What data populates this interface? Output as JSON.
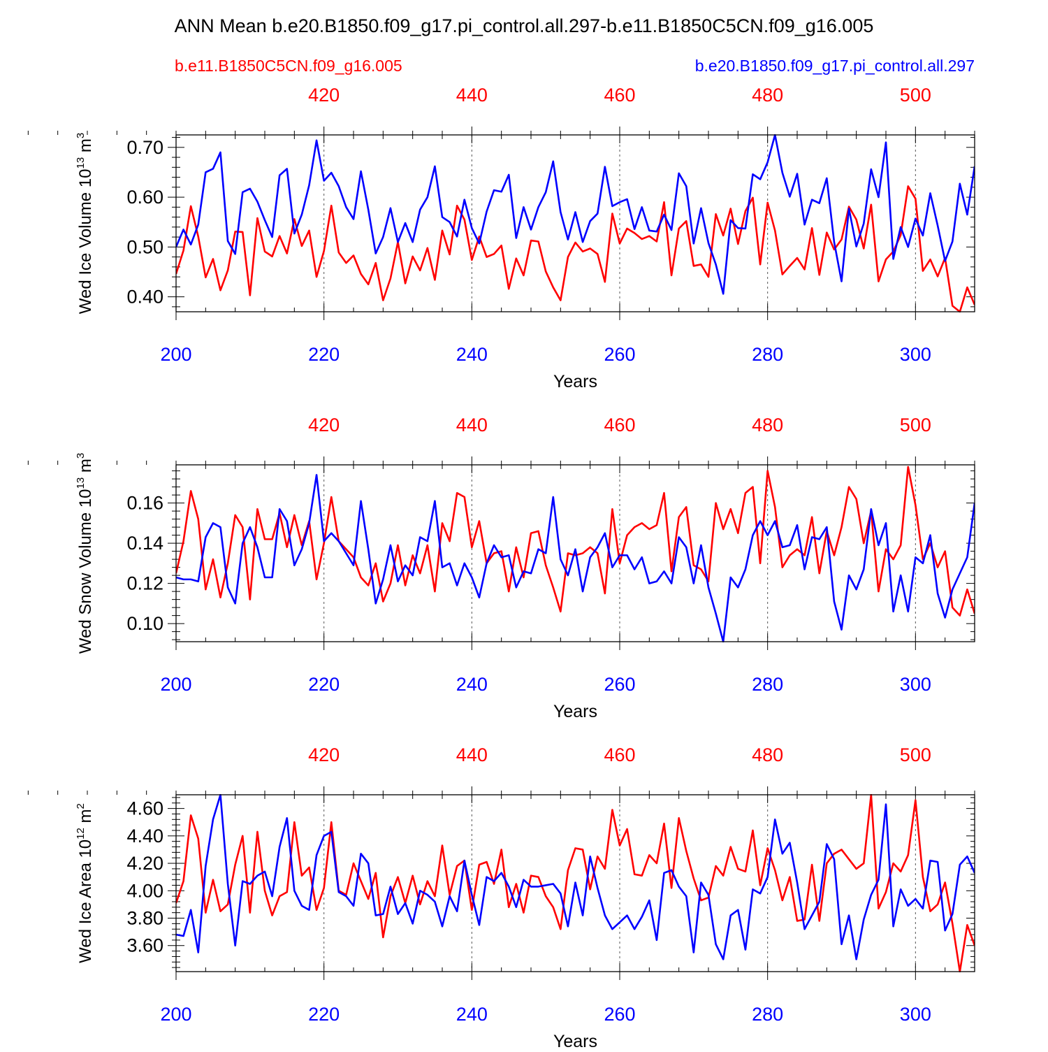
{
  "title": "ANN Mean b.e20.B1850.f09_g17.pi_control.all.297-b.e11.B1850C5CN.f09_g16.005",
  "legend": {
    "left_label": "b.e11.B1850C5CN.f09_g16.005",
    "right_label": "b.e20.B1850.f09_g17.pi_control.all.297",
    "left_color": "#ff0000",
    "right_color": "#0000ff"
  },
  "chart_data": [
    {
      "type": "line",
      "ylabel": "Wed Ice Volume 10",
      "ylabel_exp": "13",
      "ylabel_unit": " m",
      "ylabel_unit_exp": "3",
      "xlabel": "Years",
      "ylim": [
        0.37,
        0.725
      ],
      "ytick_values": [
        0.4,
        0.5,
        0.6,
        0.7
      ],
      "ytick_labels": [
        "0.40",
        "0.50",
        "0.60",
        "0.70"
      ],
      "xlim": [
        200,
        308
      ],
      "xtick_values": [
        200,
        220,
        240,
        260,
        280,
        300
      ],
      "xtick_labels": [
        "200",
        "220",
        "240",
        "260",
        "280",
        "300"
      ],
      "top_xtick_values": [
        420,
        440,
        460,
        480,
        500
      ],
      "top_xtick_labels": [
        "420",
        "440",
        "460",
        "480",
        "500"
      ],
      "top_x_offset": 200,
      "grid_x": true,
      "series": [
        {
          "name": "b.e20.B1850.f09_g17.pi_control.all.297",
          "color": "#0000ff",
          "x_start": 200,
          "values": [
            0.5,
            0.535,
            0.505,
            0.545,
            0.65,
            0.657,
            0.69,
            0.512,
            0.486,
            0.61,
            0.617,
            0.591,
            0.554,
            0.52,
            0.644,
            0.657,
            0.527,
            0.565,
            0.624,
            0.714,
            0.633,
            0.649,
            0.622,
            0.58,
            0.556,
            0.652,
            0.575,
            0.487,
            0.52,
            0.578,
            0.51,
            0.548,
            0.51,
            0.575,
            0.6,
            0.662,
            0.56,
            0.55,
            0.521,
            0.595,
            0.538,
            0.507,
            0.571,
            0.614,
            0.611,
            0.645,
            0.518,
            0.58,
            0.535,
            0.58,
            0.61,
            0.672,
            0.57,
            0.515,
            0.57,
            0.51,
            0.552,
            0.567,
            0.661,
            0.582,
            0.59,
            0.596,
            0.536,
            0.58,
            0.533,
            0.531,
            0.565,
            0.534,
            0.648,
            0.622,
            0.507,
            0.578,
            0.508,
            0.465,
            0.406,
            0.554,
            0.538,
            0.537,
            0.646,
            0.636,
            0.67,
            0.725,
            0.649,
            0.601,
            0.647,
            0.545,
            0.595,
            0.588,
            0.638,
            0.51,
            0.431,
            0.577,
            0.501,
            0.547,
            0.656,
            0.6,
            0.71,
            0.476,
            0.54,
            0.5,
            0.557,
            0.523,
            0.608,
            0.543,
            0.472,
            0.511,
            0.627,
            0.565,
            0.662
          ]
        },
        {
          "name": "b.e11.B1850C5CN.f09_g16.005",
          "color": "#ff0000",
          "x_start": 200,
          "values": [
            0.446,
            0.493,
            0.582,
            0.521,
            0.439,
            0.476,
            0.413,
            0.453,
            0.531,
            0.53,
            0.403,
            0.558,
            0.491,
            0.481,
            0.522,
            0.487,
            0.556,
            0.502,
            0.533,
            0.44,
            0.492,
            0.583,
            0.489,
            0.468,
            0.483,
            0.446,
            0.425,
            0.468,
            0.393,
            0.437,
            0.51,
            0.427,
            0.481,
            0.453,
            0.498,
            0.434,
            0.533,
            0.485,
            0.583,
            0.555,
            0.474,
            0.521,
            0.48,
            0.486,
            0.503,
            0.416,
            0.477,
            0.443,
            0.513,
            0.511,
            0.451,
            0.419,
            0.393,
            0.48,
            0.509,
            0.491,
            0.497,
            0.486,
            0.43,
            0.567,
            0.507,
            0.537,
            0.528,
            0.516,
            0.522,
            0.511,
            0.59,
            0.443,
            0.537,
            0.552,
            0.462,
            0.465,
            0.44,
            0.566,
            0.523,
            0.577,
            0.506,
            0.572,
            0.599,
            0.465,
            0.589,
            0.533,
            0.445,
            0.462,
            0.478,
            0.455,
            0.538,
            0.444,
            0.529,
            0.495,
            0.515,
            0.581,
            0.555,
            0.497,
            0.585,
            0.431,
            0.475,
            0.491,
            0.524,
            0.622,
            0.597,
            0.452,
            0.475,
            0.441,
            0.478,
            0.382,
            0.37,
            0.419,
            0.384
          ]
        }
      ]
    },
    {
      "type": "line",
      "ylabel": "Wed Snow Volume 10",
      "ylabel_exp": "13",
      "ylabel_unit": " m",
      "ylabel_unit_exp": "3",
      "xlabel": "Years",
      "ylim": [
        0.091,
        0.179
      ],
      "ytick_values": [
        0.1,
        0.12,
        0.14,
        0.16
      ],
      "ytick_labels": [
        "0.10",
        "0.12",
        "0.14",
        "0.16"
      ],
      "xlim": [
        200,
        308
      ],
      "xtick_values": [
        200,
        220,
        240,
        260,
        280,
        300
      ],
      "xtick_labels": [
        "200",
        "220",
        "240",
        "260",
        "280",
        "300"
      ],
      "top_xtick_values": [
        420,
        440,
        460,
        480,
        500
      ],
      "top_xtick_labels": [
        "420",
        "440",
        "460",
        "480",
        "500"
      ],
      "top_x_offset": 200,
      "grid_x": true,
      "series": [
        {
          "name": "b.e20.B1850.f09_g17.pi_control.all.297",
          "color": "#0000ff",
          "x_start": 200,
          "values": [
            0.123,
            0.122,
            0.122,
            0.121,
            0.143,
            0.15,
            0.148,
            0.118,
            0.11,
            0.14,
            0.148,
            0.138,
            0.123,
            0.123,
            0.157,
            0.151,
            0.129,
            0.137,
            0.15,
            0.174,
            0.141,
            0.145,
            0.141,
            0.135,
            0.129,
            0.161,
            0.137,
            0.11,
            0.122,
            0.139,
            0.121,
            0.129,
            0.124,
            0.143,
            0.141,
            0.161,
            0.128,
            0.13,
            0.119,
            0.13,
            0.123,
            0.113,
            0.13,
            0.139,
            0.133,
            0.134,
            0.118,
            0.126,
            0.125,
            0.137,
            0.135,
            0.163,
            0.132,
            0.124,
            0.137,
            0.116,
            0.133,
            0.138,
            0.145,
            0.128,
            0.134,
            0.134,
            0.127,
            0.133,
            0.12,
            0.121,
            0.126,
            0.12,
            0.143,
            0.138,
            0.12,
            0.139,
            0.118,
            0.105,
            0.091,
            0.123,
            0.118,
            0.127,
            0.144,
            0.151,
            0.144,
            0.151,
            0.138,
            0.139,
            0.149,
            0.127,
            0.143,
            0.142,
            0.148,
            0.111,
            0.097,
            0.124,
            0.117,
            0.127,
            0.157,
            0.139,
            0.15,
            0.106,
            0.124,
            0.106,
            0.133,
            0.13,
            0.144,
            0.115,
            0.103,
            0.117,
            0.125,
            0.133,
            0.16
          ]
        },
        {
          "name": "b.e11.B1850C5CN.f09_g16.005",
          "color": "#ff0000",
          "x_start": 200,
          "values": [
            0.125,
            0.141,
            0.166,
            0.152,
            0.117,
            0.132,
            0.113,
            0.13,
            0.154,
            0.148,
            0.112,
            0.157,
            0.142,
            0.142,
            0.155,
            0.138,
            0.154,
            0.139,
            0.151,
            0.122,
            0.14,
            0.163,
            0.141,
            0.137,
            0.133,
            0.123,
            0.119,
            0.13,
            0.111,
            0.12,
            0.139,
            0.119,
            0.134,
            0.125,
            0.139,
            0.116,
            0.15,
            0.141,
            0.165,
            0.163,
            0.138,
            0.151,
            0.13,
            0.135,
            0.136,
            0.116,
            0.138,
            0.123,
            0.145,
            0.146,
            0.129,
            0.118,
            0.106,
            0.135,
            0.134,
            0.135,
            0.138,
            0.135,
            0.115,
            0.157,
            0.13,
            0.144,
            0.148,
            0.15,
            0.147,
            0.149,
            0.165,
            0.126,
            0.153,
            0.158,
            0.129,
            0.127,
            0.121,
            0.16,
            0.147,
            0.157,
            0.145,
            0.165,
            0.168,
            0.13,
            0.176,
            0.158,
            0.128,
            0.134,
            0.137,
            0.134,
            0.153,
            0.125,
            0.146,
            0.134,
            0.148,
            0.168,
            0.162,
            0.14,
            0.156,
            0.116,
            0.137,
            0.132,
            0.139,
            0.178,
            0.159,
            0.132,
            0.14,
            0.128,
            0.136,
            0.108,
            0.104,
            0.117,
            0.105
          ]
        }
      ]
    },
    {
      "type": "line",
      "ylabel": "Wed Ice Area 10",
      "ylabel_exp": "12",
      "ylabel_unit": " m",
      "ylabel_unit_exp": "2",
      "xlabel": "Years",
      "ylim": [
        3.41,
        4.7
      ],
      "ytick_values": [
        3.6,
        3.8,
        4.0,
        4.2,
        4.4,
        4.6
      ],
      "ytick_labels": [
        "3.60",
        "3.80",
        "4.00",
        "4.20",
        "4.40",
        "4.60"
      ],
      "xlim": [
        200,
        308
      ],
      "xtick_values": [
        200,
        220,
        240,
        260,
        280,
        300
      ],
      "xtick_labels": [
        "200",
        "220",
        "240",
        "260",
        "280",
        "300"
      ],
      "top_xtick_values": [
        420,
        440,
        460,
        480,
        500
      ],
      "top_xtick_labels": [
        "420",
        "440",
        "460",
        "480",
        "500"
      ],
      "top_x_offset": 200,
      "grid_x": true,
      "series": [
        {
          "name": "b.e20.B1850.f09_g17.pi_control.all.297",
          "color": "#0000ff",
          "x_start": 200,
          "values": [
            3.68,
            3.67,
            3.86,
            3.55,
            4.18,
            4.52,
            4.7,
            4.05,
            3.6,
            4.07,
            4.05,
            4.11,
            4.14,
            3.96,
            4.32,
            4.53,
            4.0,
            3.89,
            3.86,
            4.26,
            4.4,
            4.43,
            3.99,
            3.96,
            3.89,
            4.27,
            4.2,
            3.82,
            3.83,
            4.03,
            3.83,
            3.91,
            3.76,
            4.0,
            3.97,
            3.92,
            3.74,
            3.96,
            3.85,
            4.22,
            3.97,
            3.75,
            4.1,
            4.07,
            4.13,
            4.03,
            3.88,
            4.08,
            4.03,
            4.03,
            4.04,
            4.05,
            3.98,
            3.74,
            4.06,
            3.82,
            4.25,
            4.02,
            3.82,
            3.72,
            3.77,
            3.82,
            3.72,
            3.81,
            3.93,
            3.64,
            4.13,
            4.15,
            4.03,
            3.96,
            3.55,
            4.06,
            3.97,
            3.61,
            3.5,
            3.82,
            3.86,
            3.57,
            4.01,
            3.98,
            4.1,
            4.52,
            4.27,
            4.35,
            4.06,
            3.72,
            3.82,
            3.92,
            4.34,
            4.23,
            3.61,
            3.82,
            3.5,
            3.79,
            3.97,
            4.08,
            4.63,
            3.74,
            4.01,
            3.89,
            3.94,
            3.87,
            4.22,
            4.21,
            3.71,
            3.83,
            4.19,
            4.25,
            4.13
          ]
        },
        {
          "name": "b.e11.B1850C5CN.f09_g16.005",
          "color": "#ff0000",
          "x_start": 200,
          "values": [
            3.91,
            4.07,
            4.55,
            4.38,
            3.84,
            4.08,
            3.85,
            3.9,
            4.19,
            4.4,
            3.84,
            4.43,
            4.0,
            3.82,
            3.96,
            3.99,
            4.5,
            4.11,
            4.17,
            3.86,
            4.02,
            4.5,
            4.0,
            3.97,
            4.2,
            4.07,
            3.94,
            4.13,
            3.66,
            3.96,
            4.1,
            3.91,
            4.11,
            3.9,
            4.07,
            3.96,
            4.33,
            3.97,
            4.18,
            4.22,
            3.86,
            4.19,
            4.21,
            4.05,
            4.3,
            3.88,
            4.05,
            3.84,
            4.11,
            4.1,
            3.96,
            3.88,
            3.72,
            4.15,
            4.31,
            4.3,
            4.01,
            4.25,
            4.16,
            4.59,
            4.33,
            4.45,
            4.12,
            4.11,
            4.26,
            4.2,
            4.49,
            4.02,
            4.53,
            4.29,
            4.09,
            3.93,
            3.95,
            4.18,
            4.11,
            4.32,
            4.16,
            4.14,
            4.44,
            4.04,
            4.31,
            4.15,
            3.93,
            4.1,
            3.78,
            3.79,
            4.19,
            3.78,
            4.2,
            4.27,
            4.3,
            4.23,
            4.16,
            4.2,
            4.7,
            3.87,
            3.99,
            4.2,
            4.14,
            4.26,
            4.66,
            4.1,
            3.85,
            3.9,
            4.06,
            3.76,
            3.41,
            3.75,
            3.6
          ]
        }
      ]
    }
  ]
}
